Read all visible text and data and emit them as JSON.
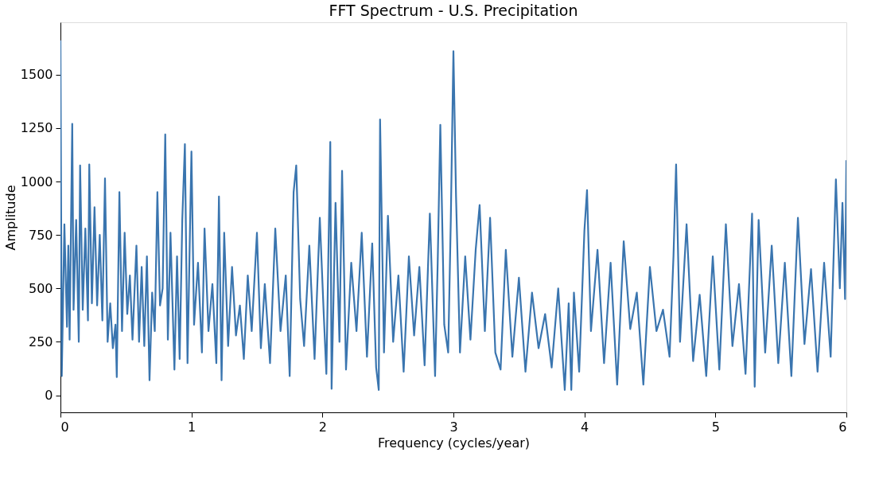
{
  "chart_data": {
    "type": "line",
    "title": "FFT Spectrum - U.S. Precipitation",
    "xlabel": "Frequency (cycles/year)",
    "ylabel": "Amplitude",
    "xlim": [
      0,
      6
    ],
    "xticks": [
      0,
      1,
      2,
      3,
      4,
      5,
      6
    ],
    "ylim": [
      -80,
      1745
    ],
    "yticks": [
      0,
      250,
      500,
      750,
      1000,
      1250,
      1500
    ],
    "grid": false,
    "legend": false,
    "marker": "none",
    "line_style": "solid",
    "series": [
      {
        "color": "#3a75af",
        "x": [
          0,
          0.01,
          0.03,
          0.05,
          0.06,
          0.07,
          0.09,
          0.1,
          0.12,
          0.14,
          0.15,
          0.17,
          0.19,
          0.21,
          0.22,
          0.24,
          0.26,
          0.28,
          0.3,
          0.32,
          0.34,
          0.36,
          0.38,
          0.4,
          0.42,
          0.43,
          0.45,
          0.47,
          0.49,
          0.51,
          0.53,
          0.55,
          0.58,
          0.6,
          0.62,
          0.64,
          0.66,
          0.68,
          0.7,
          0.72,
          0.74,
          0.76,
          0.78,
          0.8,
          0.82,
          0.84,
          0.87,
          0.89,
          0.91,
          0.93,
          0.95,
          0.97,
          1.0,
          1.02,
          1.05,
          1.08,
          1.1,
          1.13,
          1.16,
          1.19,
          1.21,
          1.23,
          1.25,
          1.28,
          1.31,
          1.34,
          1.37,
          1.4,
          1.43,
          1.46,
          1.5,
          1.53,
          1.56,
          1.6,
          1.64,
          1.68,
          1.72,
          1.75,
          1.78,
          1.8,
          1.83,
          1.86,
          1.9,
          1.94,
          1.98,
          2.01,
          2.03,
          2.06,
          2.07,
          2.1,
          2.13,
          2.15,
          2.18,
          2.22,
          2.26,
          2.3,
          2.34,
          2.38,
          2.41,
          2.43,
          2.44,
          2.47,
          2.5,
          2.54,
          2.58,
          2.62,
          2.66,
          2.7,
          2.74,
          2.78,
          2.82,
          2.86,
          2.88,
          2.9,
          2.93,
          2.96,
          2.98,
          3.0,
          3.02,
          3.05,
          3.09,
          3.13,
          3.17,
          3.2,
          3.24,
          3.28,
          3.32,
          3.36,
          3.4,
          3.45,
          3.5,
          3.55,
          3.6,
          3.65,
          3.7,
          3.75,
          3.8,
          3.85,
          3.88,
          3.9,
          3.92,
          3.96,
          4.0,
          4.02,
          4.05,
          4.1,
          4.15,
          4.2,
          4.25,
          4.3,
          4.35,
          4.4,
          4.45,
          4.5,
          4.55,
          4.6,
          4.65,
          4.68,
          4.7,
          4.73,
          4.78,
          4.83,
          4.88,
          4.93,
          4.98,
          5.03,
          5.08,
          5.13,
          5.18,
          5.23,
          5.28,
          5.3,
          5.33,
          5.38,
          5.43,
          5.48,
          5.53,
          5.58,
          5.63,
          5.68,
          5.73,
          5.78,
          5.83,
          5.88,
          5.92,
          5.95,
          5.97,
          5.99,
          6.0
        ],
        "values": [
          1660,
          90,
          800,
          320,
          700,
          260,
          1270,
          400,
          820,
          250,
          1075,
          400,
          780,
          350,
          1080,
          430,
          880,
          420,
          750,
          350,
          1015,
          250,
          430,
          220,
          330,
          85,
          950,
          300,
          760,
          380,
          560,
          260,
          700,
          250,
          600,
          230,
          650,
          70,
          480,
          300,
          950,
          420,
          500,
          1220,
          260,
          760,
          120,
          650,
          170,
          820,
          1175,
          150,
          1140,
          330,
          620,
          200,
          780,
          300,
          520,
          150,
          930,
          70,
          760,
          230,
          600,
          280,
          420,
          170,
          560,
          300,
          760,
          220,
          520,
          150,
          780,
          300,
          560,
          90,
          950,
          1075,
          450,
          230,
          700,
          170,
          830,
          380,
          100,
          1185,
          30,
          900,
          250,
          1050,
          120,
          620,
          300,
          760,
          180,
          710,
          130,
          25,
          1290,
          200,
          840,
          250,
          560,
          110,
          650,
          280,
          600,
          140,
          850,
          90,
          620,
          1265,
          330,
          200,
          820,
          1610,
          930,
          200,
          650,
          260,
          680,
          890,
          300,
          830,
          200,
          120,
          680,
          180,
          550,
          110,
          480,
          220,
          380,
          130,
          500,
          25,
          430,
          25,
          480,
          110,
          770,
          960,
          300,
          680,
          150,
          620,
          50,
          720,
          310,
          480,
          50,
          600,
          300,
          400,
          180,
          650,
          1080,
          250,
          800,
          160,
          470,
          90,
          650,
          120,
          800,
          230,
          520,
          100,
          850,
          40,
          820,
          200,
          700,
          150,
          620,
          90,
          830,
          240,
          590,
          110,
          620,
          180,
          1010,
          500,
          900,
          450,
          1100
        ]
      }
    ]
  }
}
